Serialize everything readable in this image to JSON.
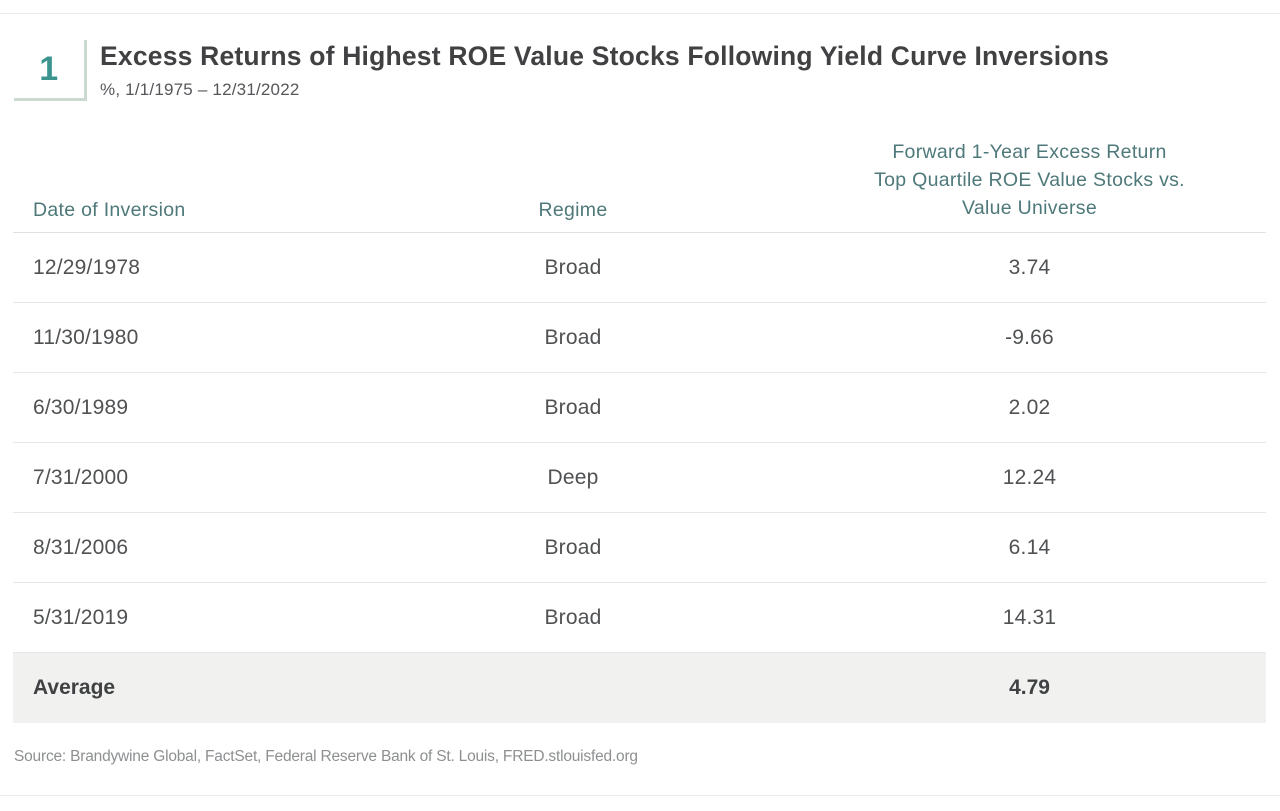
{
  "figure": {
    "number": "1",
    "title": "Excess Returns of Highest ROE Value Stocks Following Yield Curve Inversions",
    "subtitle": "%, 1/1/1975 – 12/31/2022"
  },
  "table": {
    "columns": {
      "date": "Date of Inversion",
      "regime": "Regime",
      "value_header": "Forward 1-Year Excess Return\nTop Quartile ROE Value Stocks vs.\nValue Universe"
    },
    "rows": [
      {
        "date": "12/29/1978",
        "regime": "Broad",
        "value": "3.74"
      },
      {
        "date": "11/30/1980",
        "regime": "Broad",
        "value": "-9.66"
      },
      {
        "date": "6/30/1989",
        "regime": "Broad",
        "value": "2.02"
      },
      {
        "date": "7/31/2000",
        "regime": "Deep",
        "value": "12.24"
      },
      {
        "date": "8/31/2006",
        "regime": "Broad",
        "value": "6.14"
      },
      {
        "date": "5/31/2019",
        "regime": "Broad",
        "value": "14.31"
      }
    ],
    "summary": {
      "label": "Average",
      "value": "4.79"
    }
  },
  "source": "Source: Brandywine Global, FactSet, Federal Reserve Bank of St. Louis, FRED.stlouisfed.org",
  "colors": {
    "accent_teal": "#3c948f",
    "header_teal": "#4e7879",
    "corner_border": "#cbd9d1",
    "summary_row_bg": "#f1f1f0"
  },
  "chart_data": {
    "type": "table",
    "title": "Excess Returns of Highest ROE Value Stocks Following Yield Curve Inversions",
    "subtitle": "%, 1/1/1975 – 12/31/2022",
    "columns": [
      "Date of Inversion",
      "Regime",
      "Forward 1-Year Excess Return Top Quartile ROE Value Stocks vs. Value Universe"
    ],
    "rows": [
      [
        "12/29/1978",
        "Broad",
        3.74
      ],
      [
        "11/30/1980",
        "Broad",
        -9.66
      ],
      [
        "6/30/1989",
        "Broad",
        2.02
      ],
      [
        "7/31/2000",
        "Deep",
        12.24
      ],
      [
        "8/31/2006",
        "Broad",
        6.14
      ],
      [
        "5/31/2019",
        "Broad",
        14.31
      ]
    ],
    "summary_row": [
      "Average",
      "",
      4.79
    ]
  }
}
